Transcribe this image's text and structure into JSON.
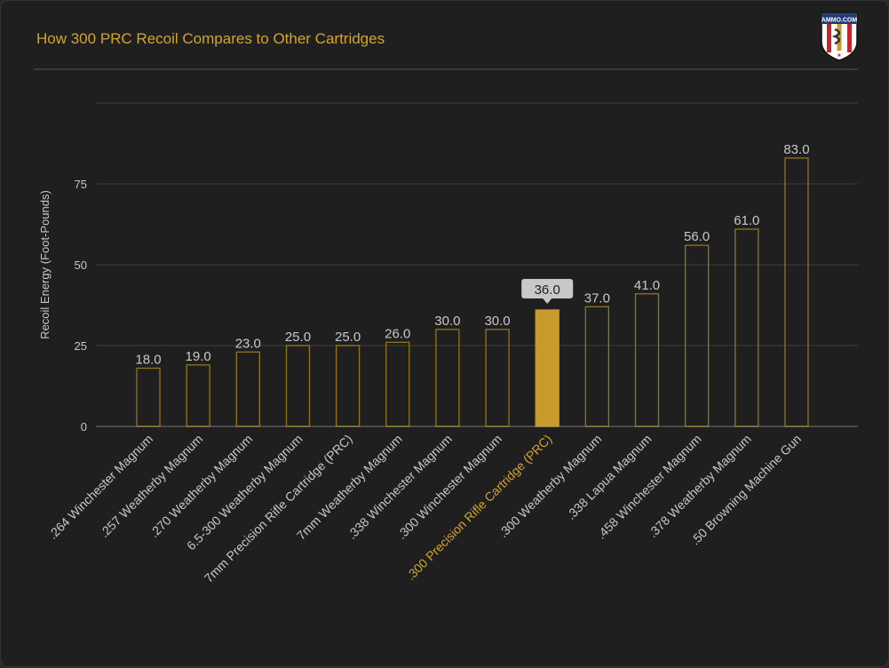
{
  "header": {
    "title": "How 300 PRC Recoil Compares to Other Cartridges",
    "logo_text": "AMMO.COM"
  },
  "colors": {
    "accent": "#d4a52a",
    "bar_fill_highlight": "#c89b2a",
    "bar_outline": "#a8841f",
    "text": "#c8c8c8",
    "grid": "#3c3c3c",
    "background": "#1f1f1f"
  },
  "chart_data": {
    "type": "bar",
    "title": "How 300 PRC Recoil Compares to Other Cartridges",
    "xlabel": "",
    "ylabel": "Recoil Energy (Foot-Pounds)",
    "ylim": [
      0,
      100
    ],
    "yticks": [
      0,
      25,
      50,
      75
    ],
    "grid": true,
    "highlight_index": 8,
    "tooltip": "36.0",
    "categories": [
      ".264 Winchester Magnum",
      ".257 Weatherby Magnum",
      ".270 Weatherby Magnum",
      "6.5-300 Weatherby Magnum",
      "7mm Precision Rifle Cartridge (PRC)",
      "7mm Weatherby Magnum",
      ".338 Winchester Magnum",
      ".300 Winchester Magnum",
      ".300 Precision Rifle Cartridge (PRC)",
      ".300 Weatherby Magnum",
      ".338 Lapua Magnum",
      ".458 Winchester Magnum",
      ".378 Weatherby Magnum",
      ".50 Browning Machine Gun"
    ],
    "values": [
      18.0,
      19.0,
      23.0,
      25.0,
      25.0,
      26.0,
      30.0,
      30.0,
      36.0,
      37.0,
      41.0,
      56.0,
      61.0,
      83.0
    ],
    "data_labels": [
      "18.0",
      "19.0",
      "23.0",
      "25.0",
      "25.0",
      "26.0",
      "30.0",
      "30.0",
      "36.0",
      "37.0",
      "41.0",
      "56.0",
      "61.0",
      "83.0"
    ]
  }
}
